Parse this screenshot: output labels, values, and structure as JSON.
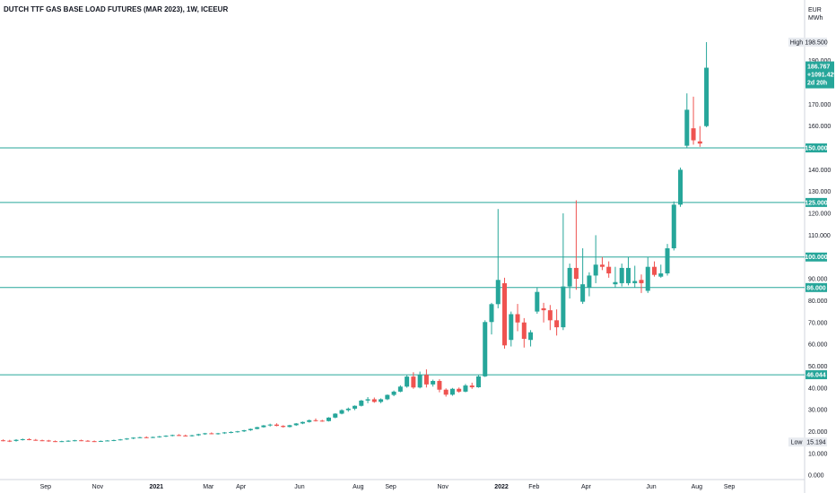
{
  "chart_data": {
    "type": "candlestick",
    "title": "DUTCH TTF GAS BASE LOAD FUTURES (MAR 2023), 1W, ICEEUR",
    "currency_label": "EUR",
    "unit_label": "MWh",
    "ylim": [
      -2,
      210
    ],
    "y_ticks": [
      "0.000",
      "10.000",
      "20.000",
      "30.000",
      "40.000",
      "50.000",
      "60.000",
      "70.000",
      "80.000",
      "90.000",
      "110.000",
      "120.000",
      "130.000",
      "140.000",
      "160.000",
      "170.000",
      "180.000",
      "190.000"
    ],
    "x_ticks": [
      {
        "label": "Sep",
        "index": 7
      },
      {
        "label": "Nov",
        "index": 15
      },
      {
        "label": "2021",
        "index": 24
      },
      {
        "label": "Mar",
        "index": 32
      },
      {
        "label": "Apr",
        "index": 37
      },
      {
        "label": "Jun",
        "index": 46
      },
      {
        "label": "Aug",
        "index": 55
      },
      {
        "label": "Sep",
        "index": 60
      },
      {
        "label": "Nov",
        "index": 68
      },
      {
        "label": "2022",
        "index": 77
      },
      {
        "label": "Feb",
        "index": 82
      },
      {
        "label": "Apr",
        "index": 90
      },
      {
        "label": "Jun",
        "index": 100
      },
      {
        "label": "Aug",
        "index": 107
      },
      {
        "label": "Sep",
        "index": 112
      }
    ],
    "horizontal_levels": [
      {
        "value": 150,
        "label": "150.000"
      },
      {
        "value": 125,
        "label": "125.000"
      },
      {
        "value": 100,
        "label": "100.000"
      },
      {
        "value": 86,
        "label": "86.000"
      },
      {
        "value": 46.044,
        "label": "46.044"
      }
    ],
    "high": {
      "label": "High",
      "value": 198.5,
      "text": "198.500"
    },
    "low": {
      "label": "Low",
      "value": 15.194,
      "text": "15.194"
    },
    "last": {
      "value": 186.767,
      "price": "186.767",
      "change": "+1091.42%",
      "countdown": "2d 20h"
    },
    "colors": {
      "up": "#26a69a",
      "down": "#ef5350",
      "level_line": "#26a69a",
      "badge": "#26a69a"
    },
    "candles": [
      [
        16.0,
        16.4,
        15.5,
        15.8
      ],
      [
        15.8,
        16.2,
        15.2,
        15.7
      ],
      [
        15.7,
        16.5,
        15.4,
        16.2
      ],
      [
        16.2,
        16.8,
        15.9,
        16.5
      ],
      [
        16.5,
        16.9,
        16.0,
        16.2
      ],
      [
        16.2,
        16.6,
        15.8,
        16.0
      ],
      [
        16.0,
        16.3,
        15.6,
        15.9
      ],
      [
        15.9,
        16.2,
        15.3,
        15.6
      ],
      [
        15.6,
        15.9,
        15.2,
        15.4
      ],
      [
        15.4,
        15.8,
        15.194,
        15.6
      ],
      [
        15.6,
        16.0,
        15.3,
        15.8
      ],
      [
        15.8,
        16.2,
        15.5,
        16.0
      ],
      [
        16.0,
        16.3,
        15.6,
        15.8
      ],
      [
        15.8,
        16.1,
        15.4,
        15.6
      ],
      [
        15.6,
        15.9,
        15.2,
        15.4
      ],
      [
        15.4,
        15.9,
        15.3,
        15.7
      ],
      [
        15.7,
        16.1,
        15.5,
        15.9
      ],
      [
        15.9,
        16.3,
        15.6,
        16.1
      ],
      [
        16.1,
        16.6,
        15.9,
        16.4
      ],
      [
        16.4,
        17.0,
        16.2,
        16.8
      ],
      [
        16.8,
        17.4,
        16.5,
        17.2
      ],
      [
        17.2,
        17.6,
        16.9,
        17.4
      ],
      [
        17.4,
        17.8,
        17.0,
        17.3
      ],
      [
        17.3,
        17.7,
        17.0,
        17.5
      ],
      [
        17.5,
        18.0,
        17.2,
        17.8
      ],
      [
        17.8,
        18.3,
        17.5,
        18.1
      ],
      [
        18.1,
        18.6,
        17.8,
        18.4
      ],
      [
        18.4,
        18.8,
        18.0,
        18.2
      ],
      [
        18.2,
        18.6,
        17.8,
        18.0
      ],
      [
        18.0,
        18.5,
        17.7,
        18.3
      ],
      [
        18.3,
        19.0,
        18.0,
        18.8
      ],
      [
        18.8,
        19.4,
        18.5,
        19.2
      ],
      [
        19.2,
        19.6,
        18.8,
        19.0
      ],
      [
        19.0,
        19.4,
        18.6,
        19.2
      ],
      [
        19.2,
        19.8,
        18.9,
        19.6
      ],
      [
        19.6,
        20.1,
        19.2,
        19.8
      ],
      [
        19.8,
        20.3,
        19.5,
        20.1
      ],
      [
        20.1,
        20.8,
        19.8,
        20.6
      ],
      [
        20.6,
        21.4,
        20.3,
        21.2
      ],
      [
        21.2,
        22.2,
        21.0,
        22.0
      ],
      [
        22.0,
        23.0,
        21.8,
        22.8
      ],
      [
        22.8,
        23.6,
        22.3,
        23.2
      ],
      [
        23.2,
        23.8,
        22.4,
        22.6
      ],
      [
        22.6,
        22.9,
        21.8,
        22.1
      ],
      [
        22.1,
        23.1,
        21.9,
        22.9
      ],
      [
        22.9,
        23.9,
        22.6,
        23.7
      ],
      [
        23.7,
        24.6,
        23.4,
        24.4
      ],
      [
        24.4,
        25.5,
        24.1,
        25.2
      ],
      [
        25.2,
        26.0,
        24.6,
        25.0
      ],
      [
        25.0,
        25.4,
        24.5,
        24.8
      ],
      [
        24.8,
        26.6,
        24.6,
        26.4
      ],
      [
        26.4,
        28.4,
        26.1,
        28.2
      ],
      [
        28.2,
        30.2,
        27.9,
        29.8
      ],
      [
        29.8,
        31.0,
        29.1,
        30.5
      ],
      [
        30.5,
        32.0,
        29.8,
        31.8
      ],
      [
        31.8,
        34.5,
        31.5,
        34.2
      ],
      [
        34.2,
        35.8,
        33.0,
        34.8
      ],
      [
        34.8,
        35.6,
        33.2,
        33.6
      ],
      [
        33.6,
        35.2,
        33.0,
        34.8
      ],
      [
        34.8,
        37.0,
        34.4,
        36.8
      ],
      [
        36.8,
        38.8,
        36.2,
        38.3
      ],
      [
        38.3,
        41.2,
        38.0,
        40.6
      ],
      [
        40.6,
        45.8,
        40.1,
        45.2
      ],
      [
        45.2,
        47.2,
        39.6,
        40.2
      ],
      [
        40.2,
        47.5,
        39.8,
        46.0
      ],
      [
        46.0,
        48.5,
        40.2,
        41.6
      ],
      [
        41.6,
        43.8,
        40.6,
        43.2
      ],
      [
        43.2,
        44.0,
        38.0,
        39.2
      ],
      [
        39.2,
        39.8,
        36.0,
        36.9
      ],
      [
        36.9,
        40.0,
        36.4,
        39.6
      ],
      [
        39.6,
        40.2,
        37.8,
        38.3
      ],
      [
        38.3,
        41.8,
        38.0,
        41.1
      ],
      [
        41.1,
        42.4,
        39.6,
        40.3
      ],
      [
        40.3,
        45.8,
        40.1,
        45.3
      ],
      [
        45.3,
        71.0,
        45.0,
        70.2
      ],
      [
        70.2,
        79.0,
        64.5,
        78.4
      ],
      [
        78.4,
        122.0,
        76.5,
        89.5
      ],
      [
        88.0,
        90.5,
        58.0,
        59.5
      ],
      [
        62.0,
        75.0,
        59.0,
        73.8
      ],
      [
        73.8,
        78.5,
        66.0,
        70.0
      ],
      [
        70.0,
        72.0,
        58.5,
        62.5
      ],
      [
        62.0,
        66.5,
        59.0,
        65.5
      ],
      [
        75.0,
        86.0,
        74.0,
        84.0
      ],
      [
        76.5,
        79.0,
        70.0,
        75.6
      ],
      [
        75.6,
        78.0,
        66.5,
        71.0
      ],
      [
        71.0,
        76.0,
        64.0,
        67.8
      ],
      [
        67.8,
        120.0,
        66.5,
        86.5
      ],
      [
        86.5,
        97.0,
        81.0,
        95.0
      ],
      [
        95.0,
        126.0,
        85.0,
        90.0
      ],
      [
        79.5,
        104.0,
        78.5,
        87.5
      ],
      [
        86.0,
        93.0,
        82.0,
        91.5
      ],
      [
        91.5,
        110.0,
        88.0,
        96.5
      ],
      [
        96.5,
        100.0,
        94.0,
        95.5
      ],
      [
        95.5,
        98.0,
        90.5,
        92.5
      ],
      [
        87.5,
        95.5,
        86.0,
        88.5
      ],
      [
        88.0,
        97.0,
        86.5,
        95.0
      ],
      [
        88.0,
        100.0,
        87.0,
        95.0
      ],
      [
        88.0,
        96.0,
        86.0,
        89.0
      ],
      [
        89.5,
        92.0,
        83.5,
        88.0
      ],
      [
        84.5,
        100.0,
        83.5,
        95.5
      ],
      [
        95.5,
        98.0,
        91.0,
        91.8
      ],
      [
        91.0,
        96.5,
        90.5,
        92.5
      ],
      [
        92.5,
        106.0,
        91.5,
        104.0
      ],
      [
        104.0,
        125.5,
        103.0,
        124.0
      ],
      [
        124.0,
        141.0,
        123.0,
        140.0
      ],
      [
        151.0,
        175.0,
        150.0,
        167.5
      ],
      [
        159.0,
        173.5,
        151.5,
        153.5
      ],
      [
        153.0,
        160.0,
        150.5,
        152.0
      ],
      [
        160.0,
        198.5,
        159.5,
        186.767
      ]
    ]
  }
}
